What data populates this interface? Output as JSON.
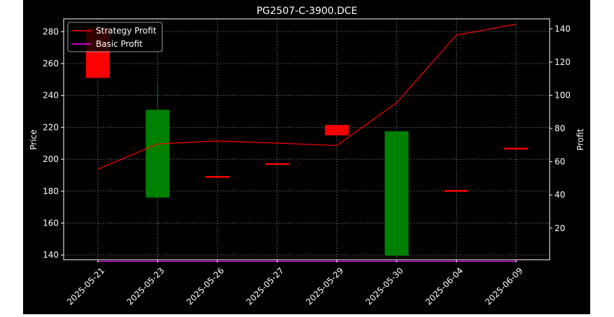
{
  "chart_data": {
    "type": "candlestick+line",
    "title": "PG2507-C-3900.DCE",
    "ylabel_left": "Price",
    "ylabel_right": "Profit",
    "ylim_left": [
      137,
      288
    ],
    "ylim_right": [
      1,
      146
    ],
    "yticks_left": [
      140,
      160,
      180,
      200,
      220,
      240,
      260,
      280
    ],
    "yticks_right": [
      20,
      40,
      60,
      80,
      100,
      120,
      140
    ],
    "grid": true,
    "legend_position": "top-left",
    "categories": [
      "2025-05-21",
      "2025-05-23",
      "2025-05-26",
      "2025-05-27",
      "2025-05-29",
      "2025-05-30",
      "2025-06-04",
      "2025-06-09"
    ],
    "candles": [
      {
        "open": 282,
        "close": 251,
        "high": 282,
        "low": 251
      },
      {
        "open": 176,
        "close": 231,
        "high": 247,
        "low": 176
      },
      {
        "open": 189.5,
        "close": 189,
        "high": 189.5,
        "low": 189
      },
      {
        "open": 197.5,
        "close": 197.2,
        "high": 197.5,
        "low": 197.2
      },
      {
        "open": 221.5,
        "close": 215,
        "high": 221.5,
        "low": 215
      },
      {
        "open": 139.5,
        "close": 217.5,
        "high": 217.5,
        "low": 139.5
      },
      {
        "open": 180.7,
        "close": 180.4,
        "high": 180.7,
        "low": 180.4
      },
      {
        "open": 207.2,
        "close": 206.9,
        "high": 207.2,
        "low": 206.9
      }
    ],
    "series": [
      {
        "name": "Strategy Profit",
        "color": "#ff0000",
        "axis": "right",
        "values": [
          55.5,
          70.7,
          72.5,
          71.2,
          69.8,
          95.5,
          136.2,
          142.8
        ]
      },
      {
        "name": "Basic Profit",
        "color": "#ff00ff",
        "axis": "right",
        "values": [
          0,
          0,
          0,
          0,
          0,
          0,
          0,
          0
        ]
      }
    ],
    "colors": {
      "up": "#008000",
      "down": "#ff0000",
      "background": "#000000",
      "foreground": "#ffffff"
    }
  }
}
